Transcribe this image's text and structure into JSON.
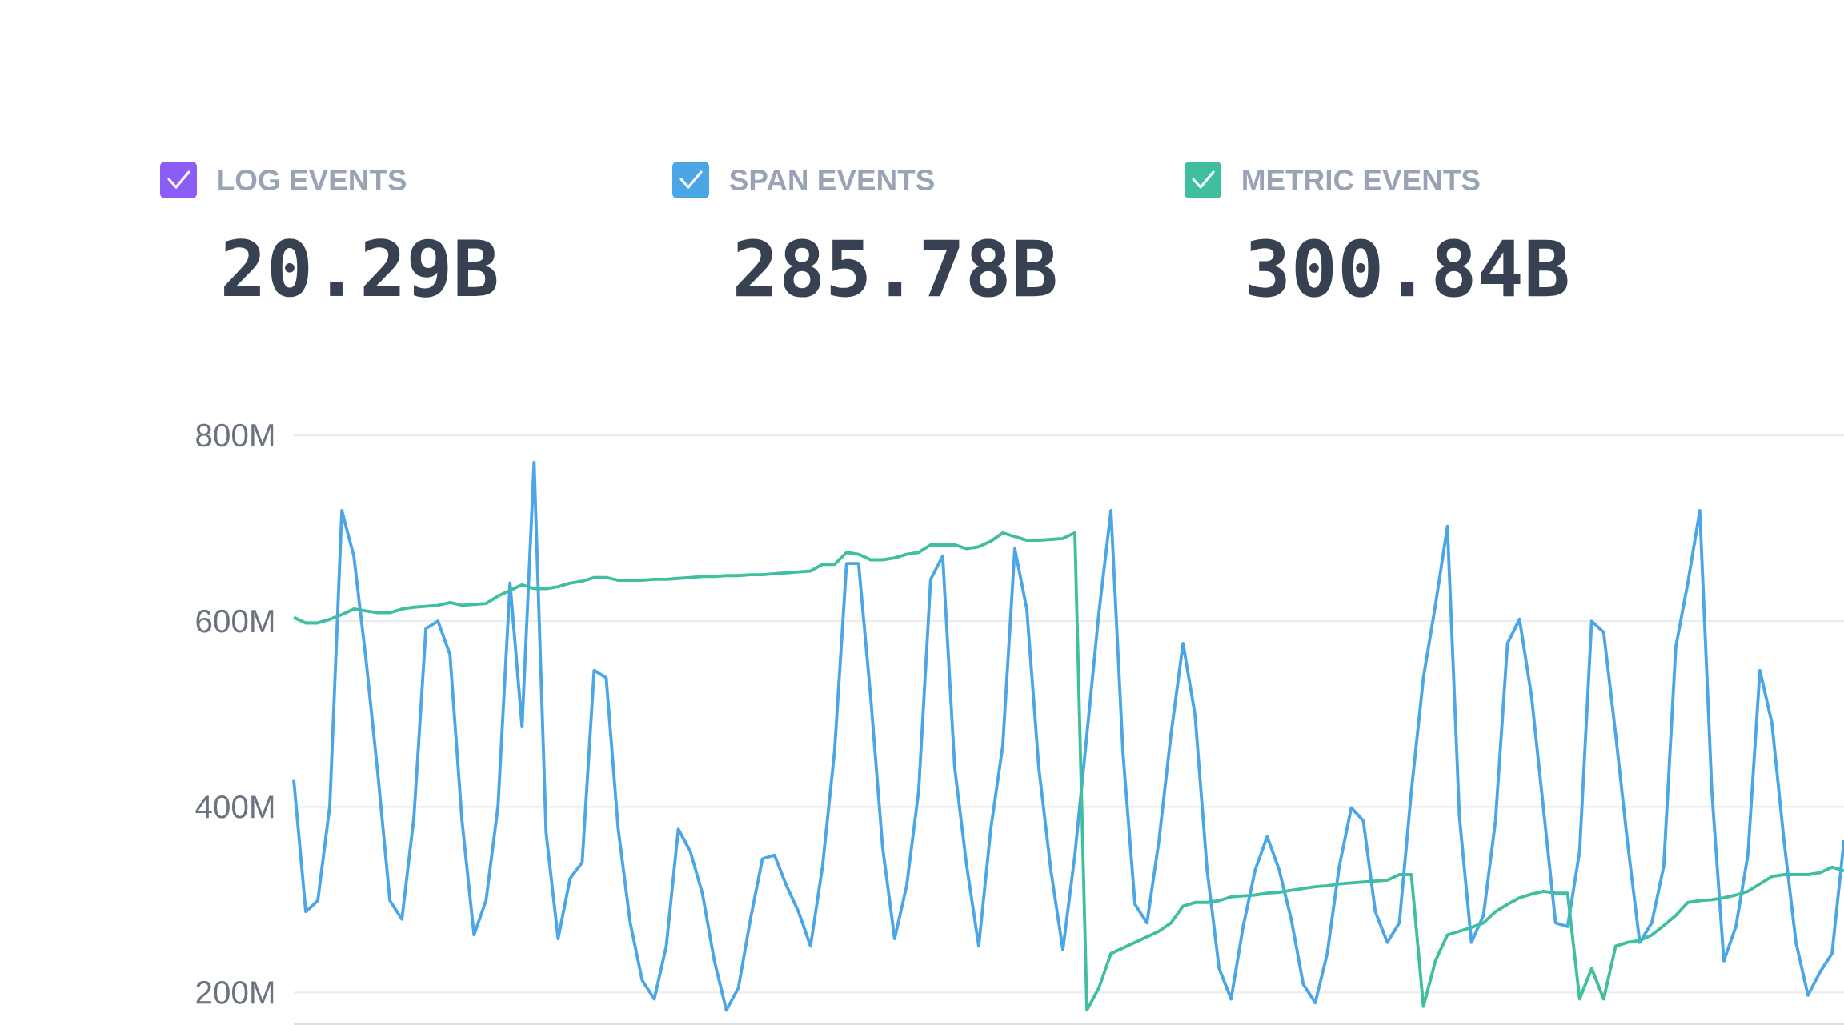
{
  "chart_data": {
    "type": "line",
    "categories": [
      null,
      null,
      null,
      null,
      null,
      null,
      null,
      null,
      null,
      null,
      null,
      null,
      null,
      null,
      null,
      null,
      null,
      null,
      null,
      null,
      null,
      null,
      null,
      null,
      null,
      null,
      null,
      null,
      null,
      null,
      null,
      null,
      null,
      null,
      null,
      null,
      null,
      null,
      null,
      null,
      null,
      null,
      null,
      null,
      null,
      null,
      null,
      null,
      null,
      null,
      null,
      null,
      null,
      null,
      null,
      null,
      null,
      null,
      null,
      null,
      null,
      null,
      null,
      null,
      null,
      null,
      null,
      null,
      null,
      null,
      null,
      null,
      null,
      null,
      null,
      null,
      null,
      null,
      null,
      null,
      null,
      null,
      null,
      null,
      null,
      null,
      null,
      null,
      null,
      null,
      null,
      null,
      null,
      null,
      null,
      null,
      null,
      null,
      null,
      null,
      null,
      null,
      null,
      null,
      null,
      null,
      null,
      null,
      null,
      null,
      null,
      null,
      null,
      null,
      null,
      null,
      null,
      null,
      null,
      null,
      null,
      null,
      null,
      null,
      null,
      null,
      null,
      null,
      null,
      null
    ],
    "series": [
      {
        "name": "LOG EVENTS",
        "color": "#8b5cf6",
        "values": [
          null,
          null,
          null,
          null,
          null,
          null,
          null,
          null,
          null,
          null,
          null,
          null,
          null,
          null,
          null,
          null,
          null,
          null,
          null,
          null,
          null,
          null,
          null,
          null,
          null,
          null,
          null,
          null,
          null,
          null,
          null,
          null,
          null,
          null,
          null,
          null,
          null,
          null,
          null,
          null,
          null,
          null,
          null,
          null,
          null,
          null,
          null,
          null,
          null,
          null,
          null,
          null,
          null,
          null,
          null,
          null,
          null,
          null,
          null,
          null,
          null,
          null,
          null,
          null,
          null,
          null,
          null,
          null,
          null,
          null,
          null,
          null,
          null,
          null,
          null,
          null,
          null,
          null,
          null,
          null,
          null,
          null,
          null,
          null,
          null,
          null,
          null,
          null,
          null,
          null,
          null,
          null,
          null,
          null,
          null,
          null,
          null,
          null,
          null,
          null,
          null,
          null,
          null,
          null,
          null,
          null,
          null,
          null,
          null,
          null,
          null,
          null,
          null,
          null,
          null,
          null,
          null,
          null,
          null,
          null,
          null,
          null,
          null,
          null,
          null,
          null,
          null,
          null,
          null,
          null
        ]
      },
      {
        "name": "SPAN EVENTS",
        "color": "#4ba6e6",
        "values": [
          429,
          287,
          299,
          401,
          719,
          670,
          560,
          435,
          299,
          279,
          389,
          592,
          600,
          564,
          385,
          262,
          299,
          401,
          641,
          486,
          771,
          372,
          258,
          323,
          340,
          547,
          539,
          376,
          275,
          213,
          193,
          250,
          376,
          352,
          307,
          234,
          181,
          205,
          279,
          344,
          348,
          315,
          287,
          250,
          336,
          460,
          662,
          662,
          519,
          356,
          258,
          315,
          417,
          645,
          670,
          442,
          336,
          250,
          376,
          466,
          678,
          613,
          442,
          332,
          246,
          348,
          478,
          609,
          719,
          458,
          295,
          275,
          364,
          478,
          576,
          499,
          332,
          226,
          193,
          271,
          332,
          368,
          332,
          279,
          209,
          189,
          242,
          336,
          399,
          385,
          287,
          254,
          275,
          417,
          539,
          617,
          702,
          389,
          254,
          283,
          385,
          576,
          602,
          519,
          397,
          275,
          271,
          352,
          600,
          588,
          478,
          360,
          254,
          275,
          336,
          572,
          641,
          719,
          417,
          234,
          271,
          348,
          547,
          490,
          364,
          254,
          197,
          222,
          242,
          364
        ]
      },
      {
        "name": "METRIC EVENTS",
        "color": "#3fbf9f",
        "values": [
          604,
          598,
          598,
          602,
          607,
          613,
          611,
          609,
          609,
          613,
          615,
          616,
          617,
          620,
          617,
          618,
          619,
          627,
          633,
          639,
          635,
          635,
          637,
          641,
          643,
          647,
          647,
          644,
          644,
          644,
          645,
          645,
          646,
          647,
          648,
          648,
          649,
          649,
          650,
          650,
          651,
          652,
          653,
          654,
          661,
          661,
          674,
          672,
          666,
          666,
          668,
          672,
          674,
          682,
          682,
          682,
          678,
          680,
          686,
          695,
          691,
          687,
          687,
          688,
          689,
          695,
          181,
          205,
          242,
          248,
          254,
          260,
          266,
          275,
          293,
          297,
          297,
          299,
          303,
          304,
          305,
          307,
          308,
          310,
          312,
          314,
          315,
          317,
          318,
          319,
          320,
          321,
          327,
          327,
          185,
          234,
          262,
          266,
          270,
          275,
          287,
          295,
          302,
          306,
          309,
          307,
          307,
          193,
          226,
          193,
          250,
          254,
          256,
          262,
          272,
          283,
          297,
          299,
          300,
          302,
          305,
          309,
          317,
          325,
          327,
          327,
          327,
          329,
          335,
          331
        ]
      }
    ],
    "annotations": [
      "20.29B",
      "285.78B",
      "300.84B"
    ],
    "ylim": [
      165,
      800
    ],
    "yticks": [
      {
        "value": 200,
        "label": "200M"
      },
      {
        "value": 400,
        "label": "400M"
      },
      {
        "value": 600,
        "label": "600M"
      },
      {
        "value": 800,
        "label": "800M"
      }
    ],
    "grid": "y",
    "legend": "top left",
    "tick_labels": "y",
    "marker": "none",
    "line_style": "solid"
  }
}
